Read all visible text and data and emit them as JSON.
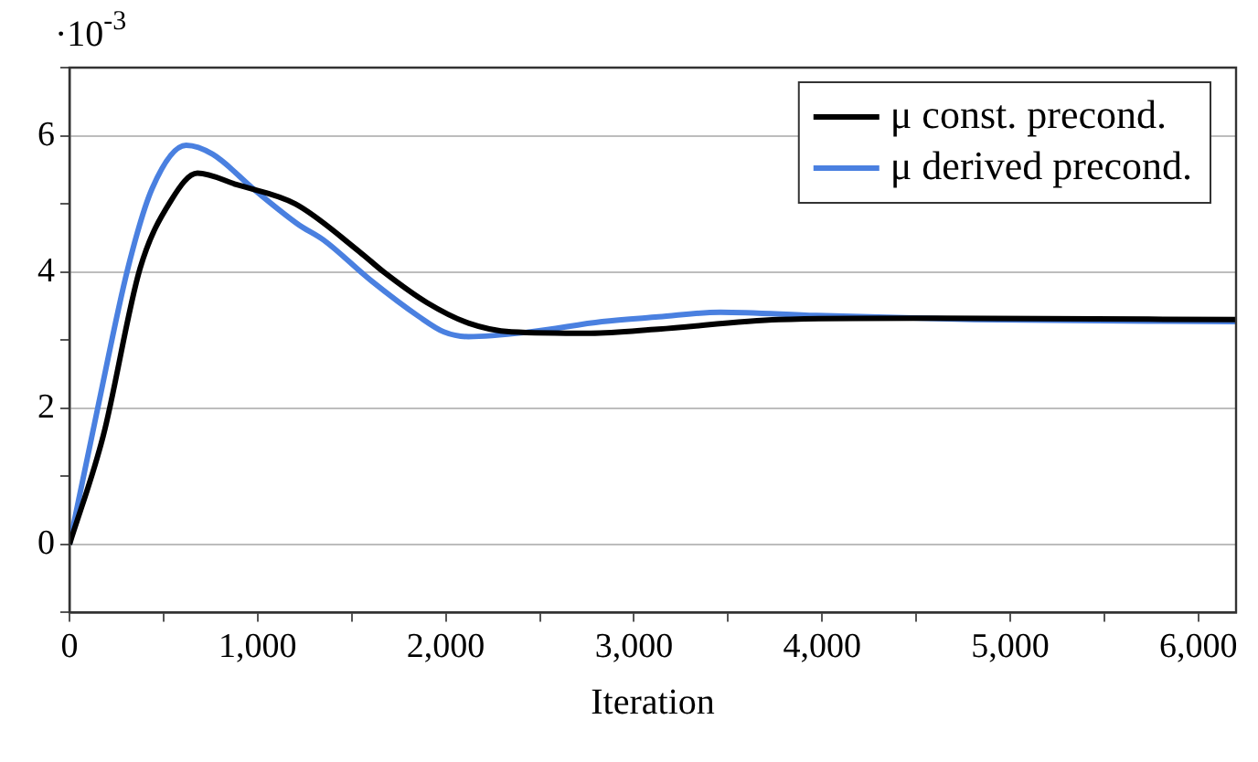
{
  "chart_data": {
    "type": "line",
    "xlabel": "Iteration",
    "annotations": [
      "·10$^{-3}$"
    ],
    "xlim": [
      0,
      6200
    ],
    "ylim": [
      -1,
      7
    ],
    "xticks": [
      0,
      {
        "value": 500,
        "label": null
      },
      {
        "value": 1000,
        "label": "1,000"
      },
      {
        "value": 1500,
        "label": null
      },
      {
        "value": 2000,
        "label": "2,000"
      },
      {
        "value": 2500,
        "label": null
      },
      {
        "value": 3000,
        "label": "3,000"
      },
      {
        "value": 3500,
        "label": null
      },
      {
        "value": 4000,
        "label": "4,000"
      },
      {
        "value": 4500,
        "label": null
      },
      {
        "value": 5000,
        "label": "5,000"
      },
      {
        "value": 5500,
        "label": null
      },
      {
        "value": 6000,
        "label": "6,000"
      }
    ],
    "yticks": [
      {
        "value": -1,
        "label": null
      },
      0,
      {
        "value": 1,
        "label": null
      },
      2,
      {
        "value": 3,
        "label": null
      },
      4,
      {
        "value": 5,
        "label": null
      },
      6,
      {
        "value": 7,
        "label": null
      }
    ],
    "grid": "y",
    "legend": "top right",
    "marker": "none",
    "line_style": "solid",
    "series": [
      {
        "name": "μ const. precond.",
        "color": "#000000",
        "x": [
          0,
          180,
          375,
          540,
          680,
          890,
          1200,
          1540,
          1670,
          1900,
          2120,
          2350,
          2770,
          3130,
          3770,
          4490,
          6200
        ],
        "values": [
          0,
          1.6,
          4.05,
          5.05,
          5.45,
          5.28,
          5.0,
          4.3,
          4.0,
          3.55,
          3.25,
          3.12,
          3.1,
          3.16,
          3.3,
          3.32,
          3.3
        ]
      },
      {
        "name": "μ derived precond.",
        "color": "#4a80e0",
        "x": [
          0,
          150,
          310,
          440,
          620,
          760,
          990,
          1220,
          1350,
          1600,
          1860,
          1990,
          2120,
          2450,
          2830,
          3130,
          3460,
          3970,
          4810,
          6200
        ],
        "values": [
          0,
          2.0,
          4.05,
          5.23,
          5.86,
          5.73,
          5.19,
          4.69,
          4.47,
          3.88,
          3.34,
          3.12,
          3.05,
          3.12,
          3.27,
          3.34,
          3.41,
          3.36,
          3.3,
          3.27
        ]
      }
    ]
  }
}
